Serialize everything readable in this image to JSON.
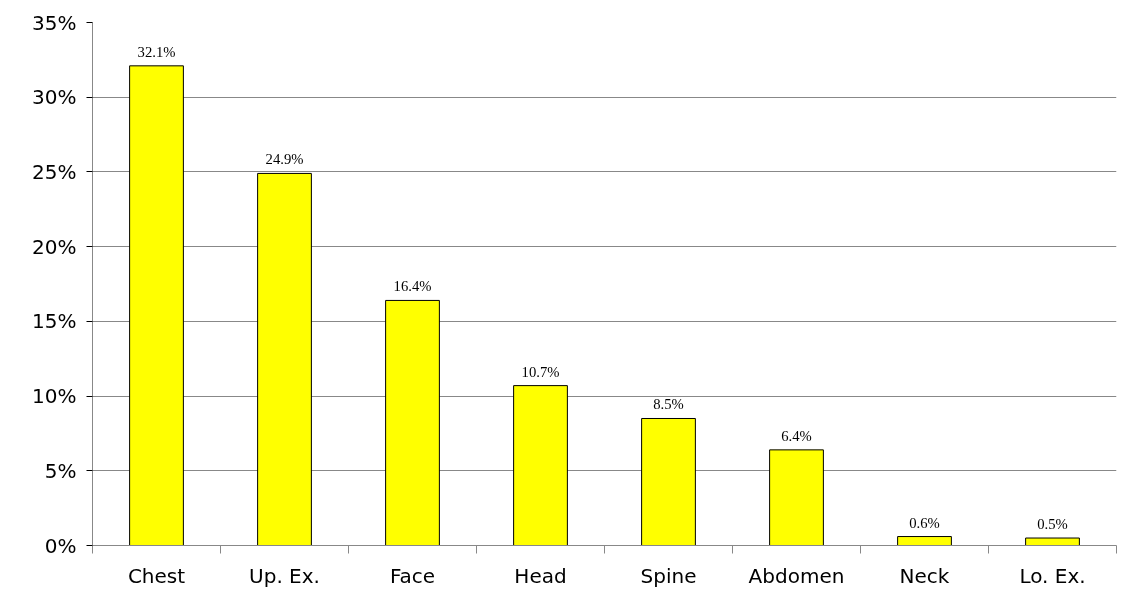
{
  "chart_data": {
    "type": "bar",
    "categories": [
      "Chest",
      "Up. Ex.",
      "Face",
      "Head",
      "Spine",
      "Abdomen",
      "Neck",
      "Lo. Ex."
    ],
    "values": [
      32.1,
      24.9,
      16.4,
      10.7,
      8.5,
      6.4,
      0.6,
      0.5
    ],
    "value_labels": [
      "32.1%",
      "24.9%",
      "16.4%",
      "10.7%",
      "8.5%",
      "6.4%",
      "0.6%",
      "0.5%"
    ],
    "color": "#ffff00",
    "ylim": [
      0,
      35
    ],
    "yticks": [
      {
        "value": 0,
        "label": "0%"
      },
      {
        "value": 5,
        "label": "5%"
      },
      {
        "value": 10,
        "label": "10%"
      },
      {
        "value": 15,
        "label": "15%"
      },
      {
        "value": 20,
        "label": "20%"
      },
      {
        "value": 25,
        "label": "25%"
      },
      {
        "value": 30,
        "label": "30%"
      },
      {
        "value": 35,
        "label": "35%"
      }
    ],
    "grid": "y"
  }
}
